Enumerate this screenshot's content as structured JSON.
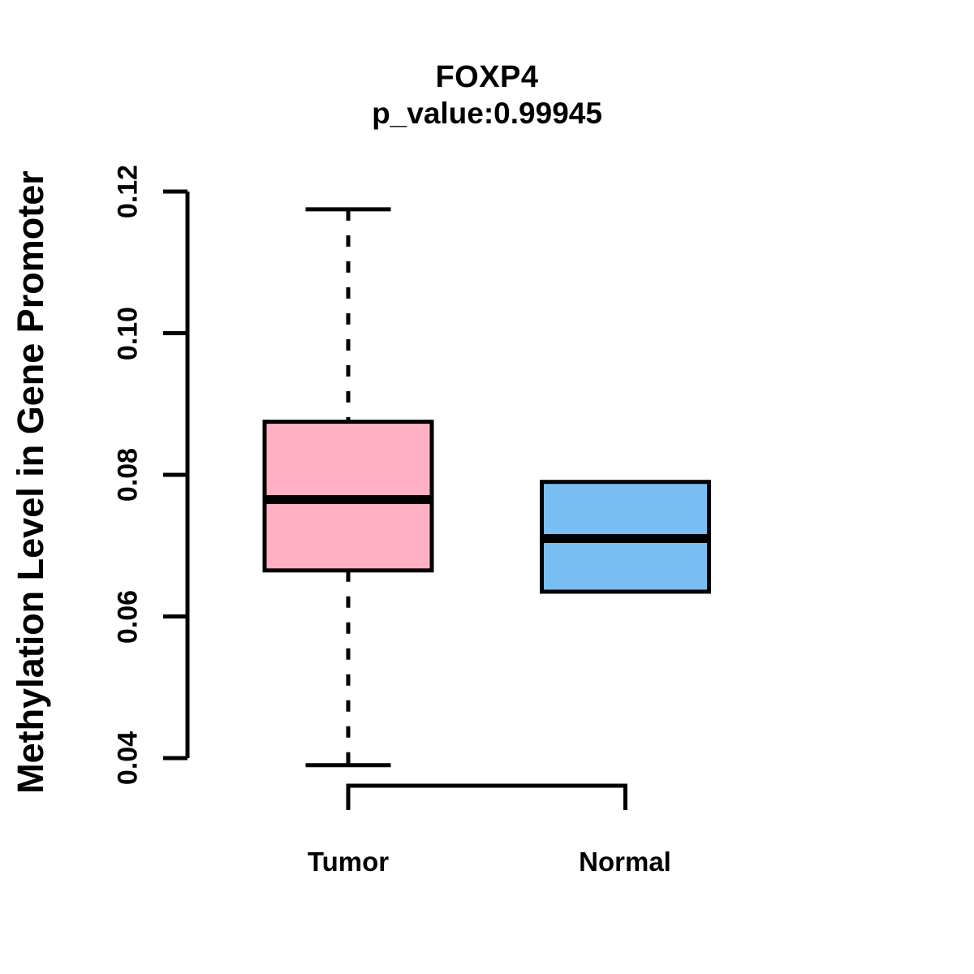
{
  "chart_data": {
    "type": "boxplot",
    "title": "FOXP4",
    "subtitle": "p_value:0.99945",
    "ylabel": "Methylation Level in Gene Promoter",
    "xlabel": "",
    "ylim": [
      0.04,
      0.12
    ],
    "yticks": [
      0.04,
      0.06,
      0.08,
      0.1,
      0.12
    ],
    "ytick_labels": [
      "0.04",
      "0.06",
      "0.08",
      "0.10",
      "0.12"
    ],
    "grid": "off",
    "legend": "none",
    "frame": "open-left-axis-only",
    "colors": {
      "tumor_fill": "#FFB0C4",
      "normal_fill": "#79BFF3",
      "stroke": "#000000",
      "background": "#FFFFFF"
    },
    "groups": [
      {
        "label": "Tumor",
        "fill_color": "#FFB0C4",
        "whisker_low": 0.039,
        "q1": 0.0665,
        "median": 0.0765,
        "q3": 0.0875,
        "whisker_high": 0.1175,
        "whisker_style": "dashed",
        "outliers": []
      },
      {
        "label": "Normal",
        "fill_color": "#79BFF3",
        "whisker_low": 0.0635,
        "q1": 0.0635,
        "median": 0.071,
        "q3": 0.079,
        "whisker_high": 0.079,
        "whisker_style": "none",
        "outliers": []
      }
    ]
  }
}
